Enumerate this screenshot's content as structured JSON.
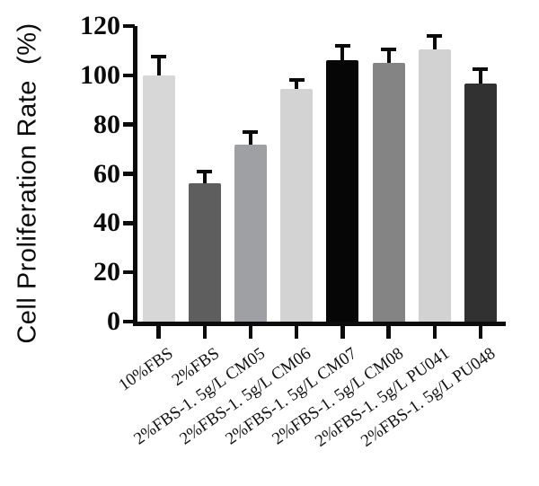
{
  "figure": {
    "background": "#ffffff"
  },
  "chart_data": {
    "type": "bar",
    "title": "",
    "ylabel": "Cell Proliferation Rate  (%)",
    "xlabel": "",
    "ylim": [
      0,
      120
    ],
    "yticks": [
      0,
      20,
      40,
      60,
      80,
      100,
      120
    ],
    "grid": false,
    "legend": false,
    "categories": [
      "10%FBS",
      "2%FBS",
      "2%FBS-1. 5g/L CM05",
      "2%FBS-1. 5g/L CM06",
      "2%FBS-1. 5g/L CM07",
      "2%FBS-1. 5g/L CM08",
      "2%FBS-1. 5g/L PU041",
      "2%FBS-1. 5g/L PU048"
    ],
    "series": [
      {
        "name": "Cell Proliferation Rate",
        "values": [
          100,
          56,
          72,
          94.5,
          106,
          105,
          110.5,
          96.5
        ],
        "errors_plus": [
          7.5,
          5,
          5,
          3.5,
          6,
          5.5,
          5.5,
          6
        ]
      }
    ],
    "bar_colors": [
      "#d7d7d7",
      "#5e5e5e",
      "#9fa0a4",
      "#d3d3d3",
      "#060606",
      "#848484",
      "#d2d2d2",
      "#313131"
    ],
    "error_bar_color": "#0a0a0a",
    "axis_color": "#0b0b0b"
  }
}
